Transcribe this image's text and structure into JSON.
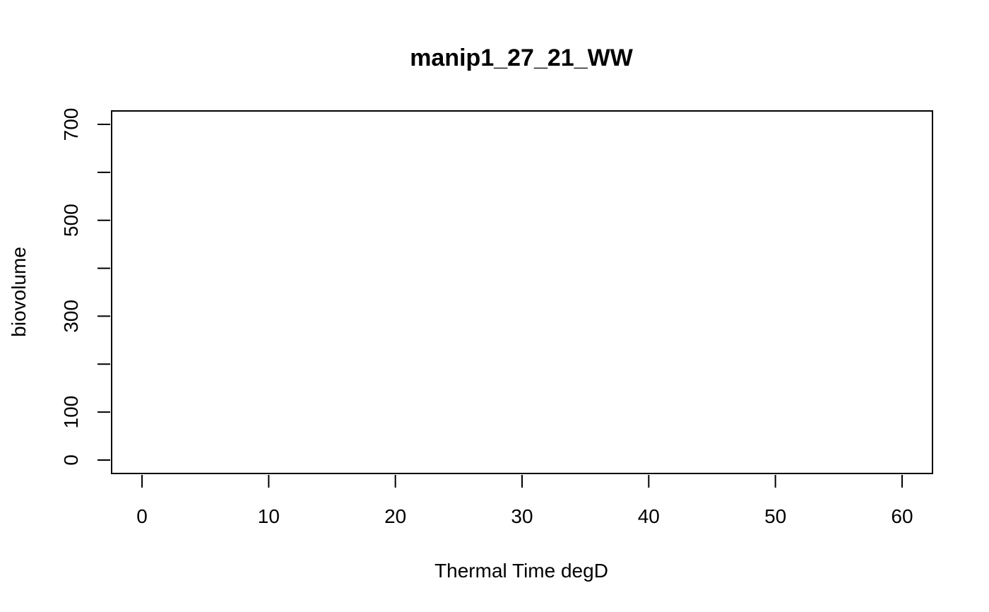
{
  "chart_data": {
    "type": "line",
    "title": "manip1_27_21_WW",
    "xlabel": "Thermal Time degD",
    "ylabel": "biovolume",
    "xlim": [
      -2.4,
      62.4
    ],
    "ylim": [
      -28,
      728
    ],
    "x_ticks": [
      0,
      10,
      20,
      30,
      40,
      50,
      60
    ],
    "x_tick_labels": [
      "0",
      "10",
      "20",
      "30",
      "40",
      "50",
      "60"
    ],
    "y_ticks": [
      0,
      100,
      200,
      300,
      400,
      500,
      600,
      700
    ],
    "y_tick_labels": [
      "0",
      "100",
      "",
      "300",
      "",
      "500",
      "",
      "700"
    ],
    "series": [],
    "grid": false,
    "legend": "none"
  }
}
